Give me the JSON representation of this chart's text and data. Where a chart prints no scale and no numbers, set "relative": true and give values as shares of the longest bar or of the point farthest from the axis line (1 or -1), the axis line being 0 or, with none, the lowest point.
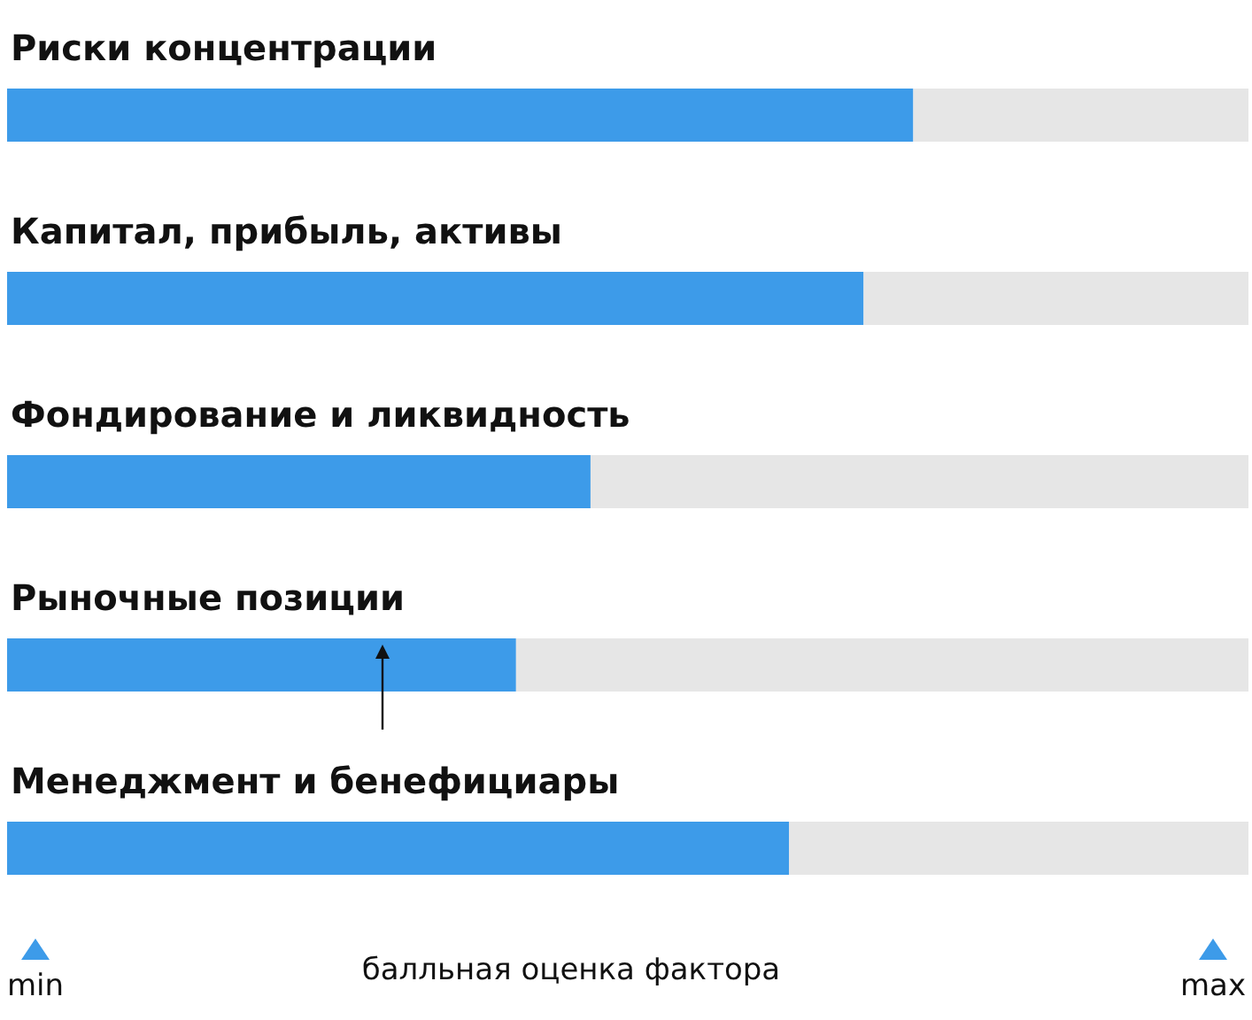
{
  "chart_data": {
    "type": "bar",
    "orientation": "horizontal",
    "stacked": true,
    "relative": true,
    "categories": [
      "Риски концентрации",
      "Капитал, прибыль, активы",
      "Фондирование и ликвидность",
      "Рыночные позиции",
      "Менеджмент и бенефициары"
    ],
    "series": [
      {
        "color": "#3d9be9",
        "values": [
          0.73,
          0.69,
          0.47,
          0.41,
          0.63
        ]
      },
      {
        "color": "#e6e6e6",
        "values": [
          0.27,
          0.31,
          0.53,
          0.59,
          0.37
        ]
      }
    ],
    "xlabel": "балльная оценка фактора",
    "annotations": [
      "min",
      "max"
    ]
  }
}
